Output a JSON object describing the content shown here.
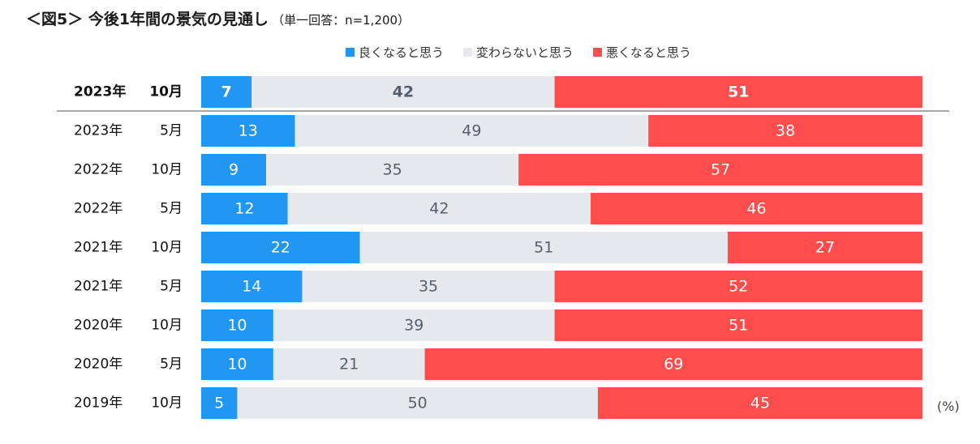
{
  "chart_data": {
    "type": "bar",
    "orientation": "horizontal",
    "stacked": true,
    "title": "＜図5＞ 今後1年間の景気の見通し",
    "subtitle": "（単一回答：n=1,200）",
    "unit": "(%)",
    "categories": [
      {
        "year": "2023年",
        "month": "10月",
        "highlight": true
      },
      {
        "year": "2023年",
        "month": "5月",
        "highlight": false
      },
      {
        "year": "2022年",
        "month": "10月",
        "highlight": false
      },
      {
        "year": "2022年",
        "month": "5月",
        "highlight": false
      },
      {
        "year": "2021年",
        "month": "10月",
        "highlight": false
      },
      {
        "year": "2021年",
        "month": "5月",
        "highlight": false
      },
      {
        "year": "2020年",
        "month": "10月",
        "highlight": false
      },
      {
        "year": "2020年",
        "month": "5月",
        "highlight": false
      },
      {
        "year": "2019年",
        "month": "10月",
        "highlight": false
      }
    ],
    "series": [
      {
        "name": "良くなると思う",
        "color": "#2196F3",
        "label_color": "#ffffff",
        "values": [
          7,
          13,
          9,
          12,
          22,
          14,
          10,
          10,
          5
        ]
      },
      {
        "name": "変わらないと思う",
        "color": "#E5E8ED",
        "label_color": "#55606E",
        "values": [
          42,
          49,
          35,
          42,
          51,
          35,
          39,
          21,
          50
        ]
      },
      {
        "name": "悪くなると思う",
        "color": "#FF4C4C",
        "label_color": "#ffffff",
        "values": [
          51,
          38,
          57,
          46,
          27,
          52,
          51,
          69,
          45
        ]
      }
    ],
    "xlim": [
      0,
      100
    ],
    "legend_position": "top"
  }
}
